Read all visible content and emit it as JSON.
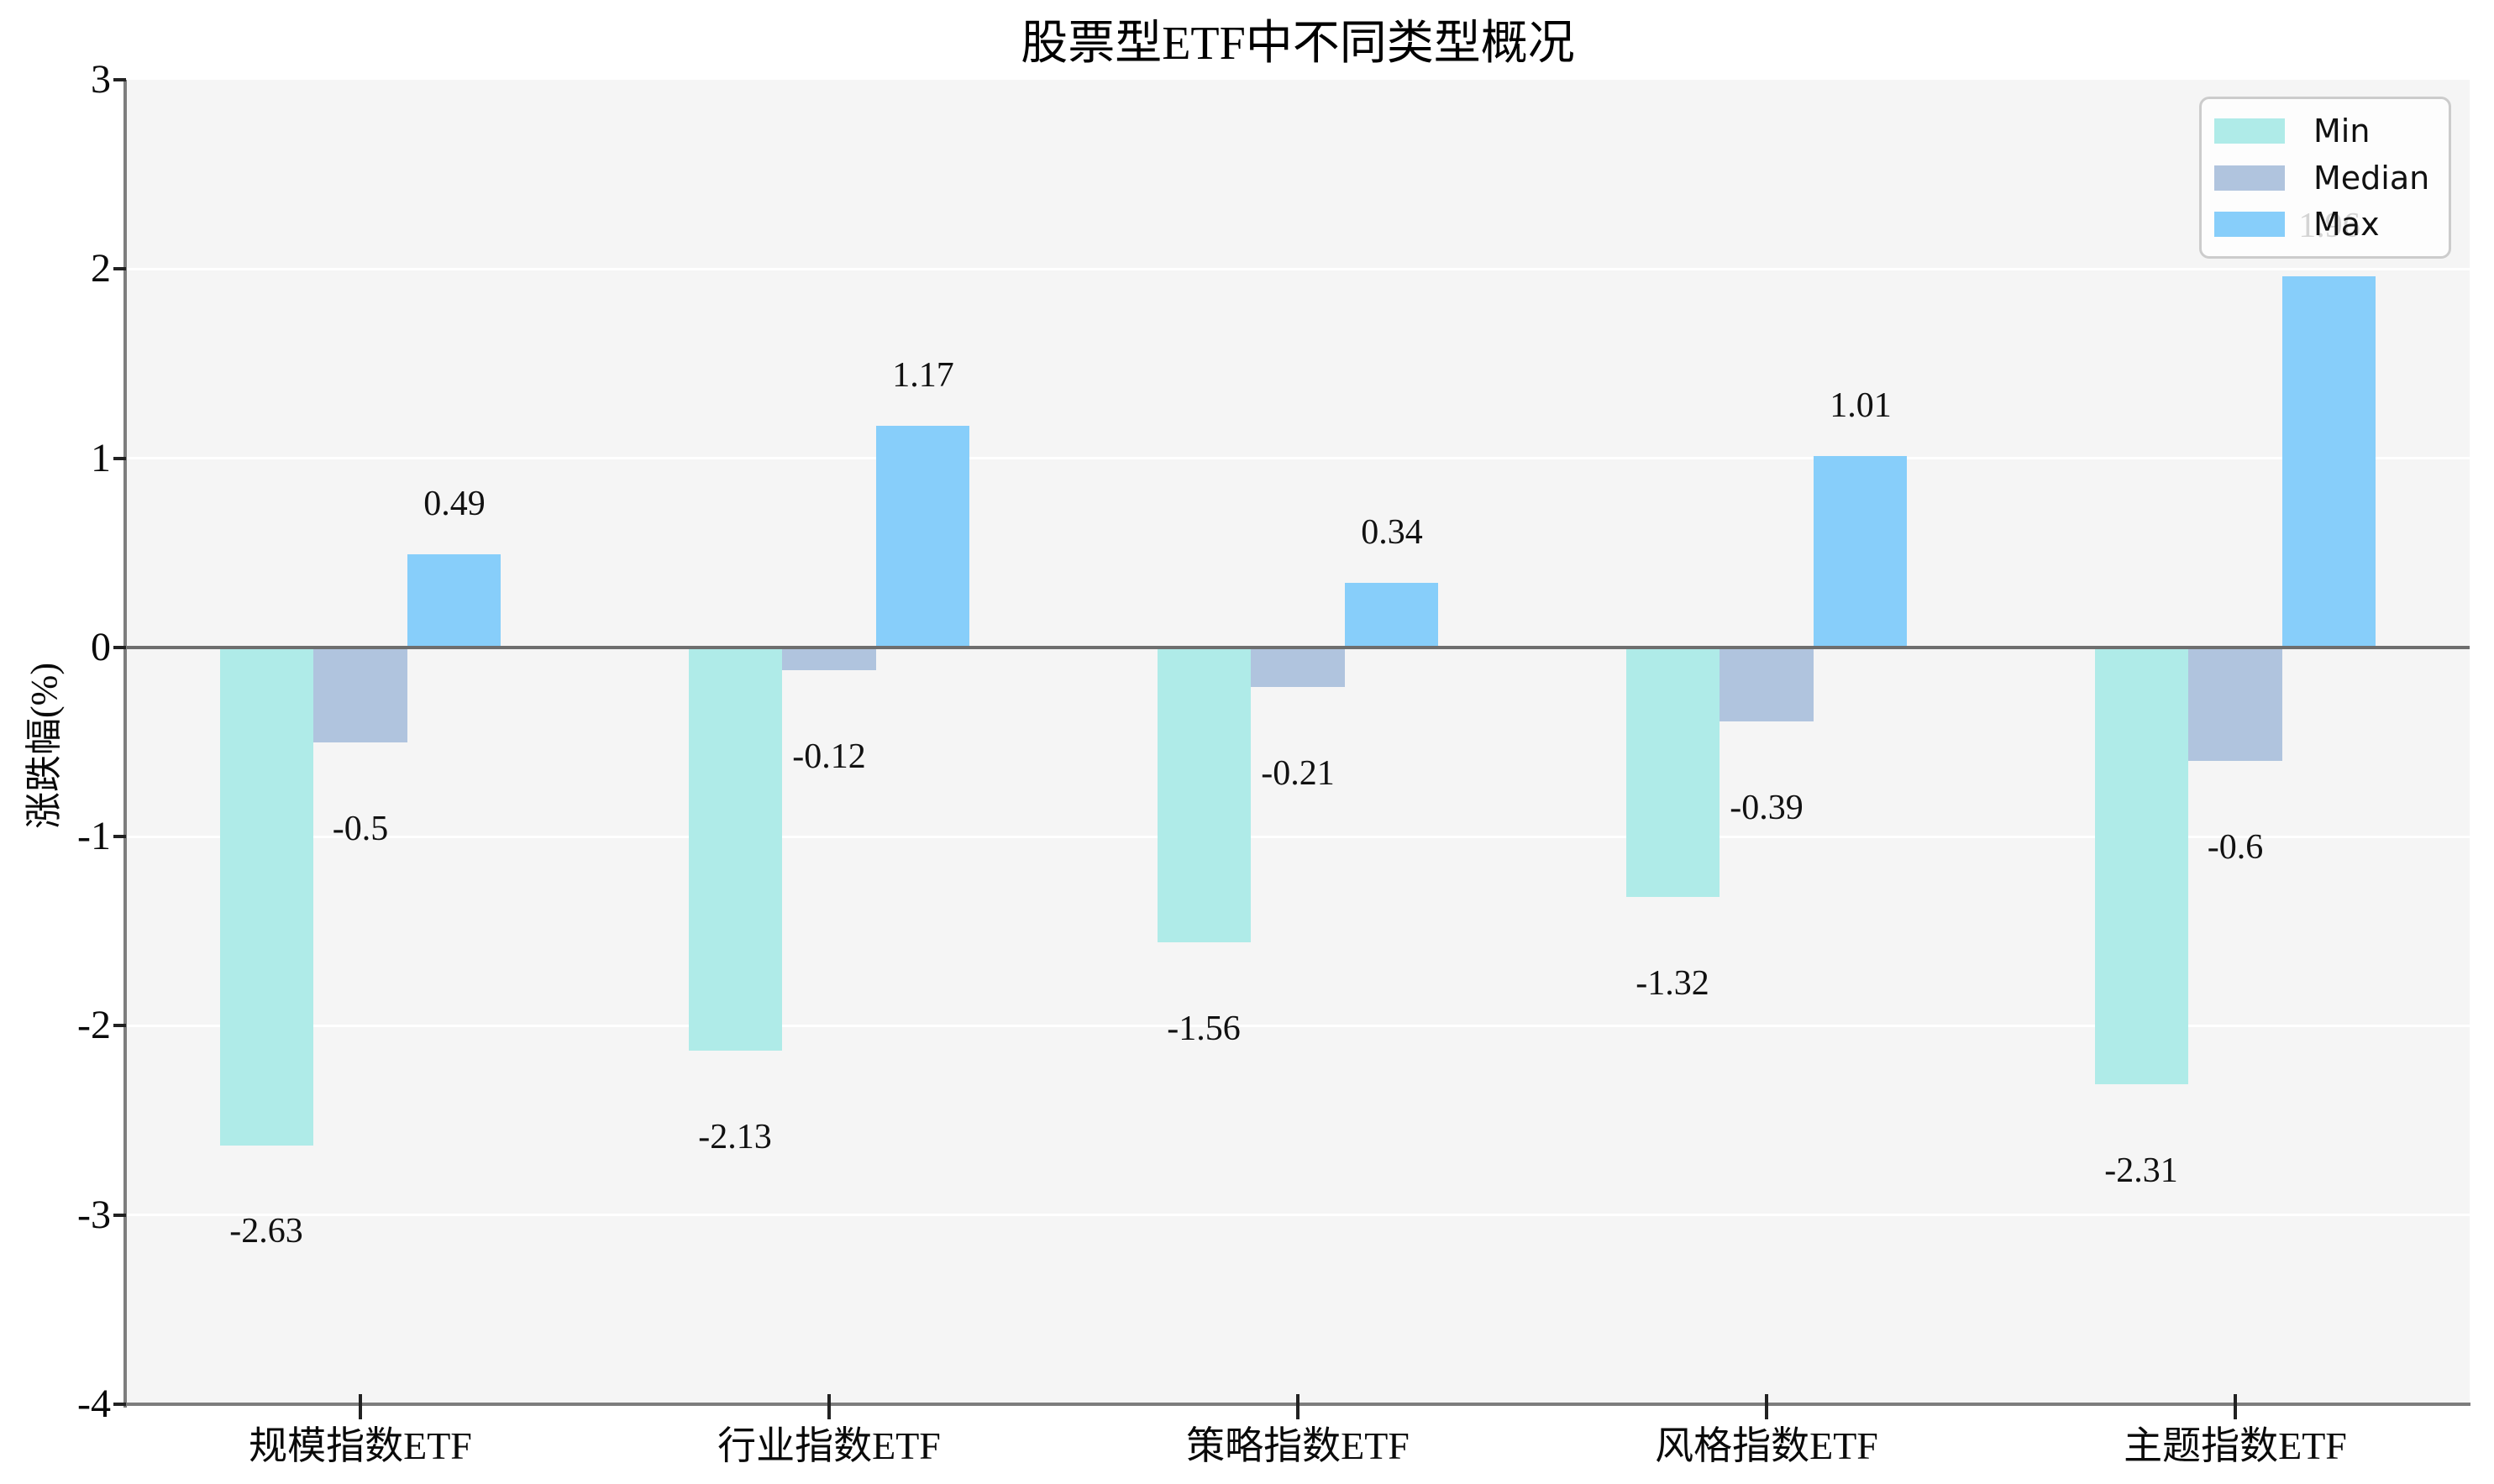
{
  "chart_data": {
    "type": "bar",
    "title": "股票型ETF中不同类型概况",
    "ylabel": "涨跌幅(%)",
    "xlabel": "",
    "categories": [
      "规模指数ETF",
      "行业指数ETF",
      "策略指数ETF",
      "风格指数ETF",
      "主题指数ETF"
    ],
    "series": [
      {
        "name": "Min",
        "color": "#afebe8",
        "values": [
          -2.63,
          -2.13,
          -1.56,
          -1.32,
          -2.31
        ]
      },
      {
        "name": "Median",
        "color": "#b0c4de",
        "values": [
          -0.5,
          -0.12,
          -0.21,
          -0.39,
          -0.6
        ]
      },
      {
        "name": "Max",
        "color": "#87cefa",
        "values": [
          0.49,
          1.17,
          0.34,
          1.01,
          1.96
        ]
      }
    ],
    "ylim": [
      -4,
      3
    ],
    "yticks": [
      3,
      2,
      1,
      0,
      -1,
      -2,
      -3,
      -4
    ],
    "grid": true,
    "legend_position": "upper right",
    "bar_value_labels": true,
    "plot_background": "#f5f5f5",
    "gridline_color": "#ffffff",
    "zero_line_color": "#6e6e6e",
    "spine_color": "#7d7d7d",
    "tick_color": "#222222"
  }
}
